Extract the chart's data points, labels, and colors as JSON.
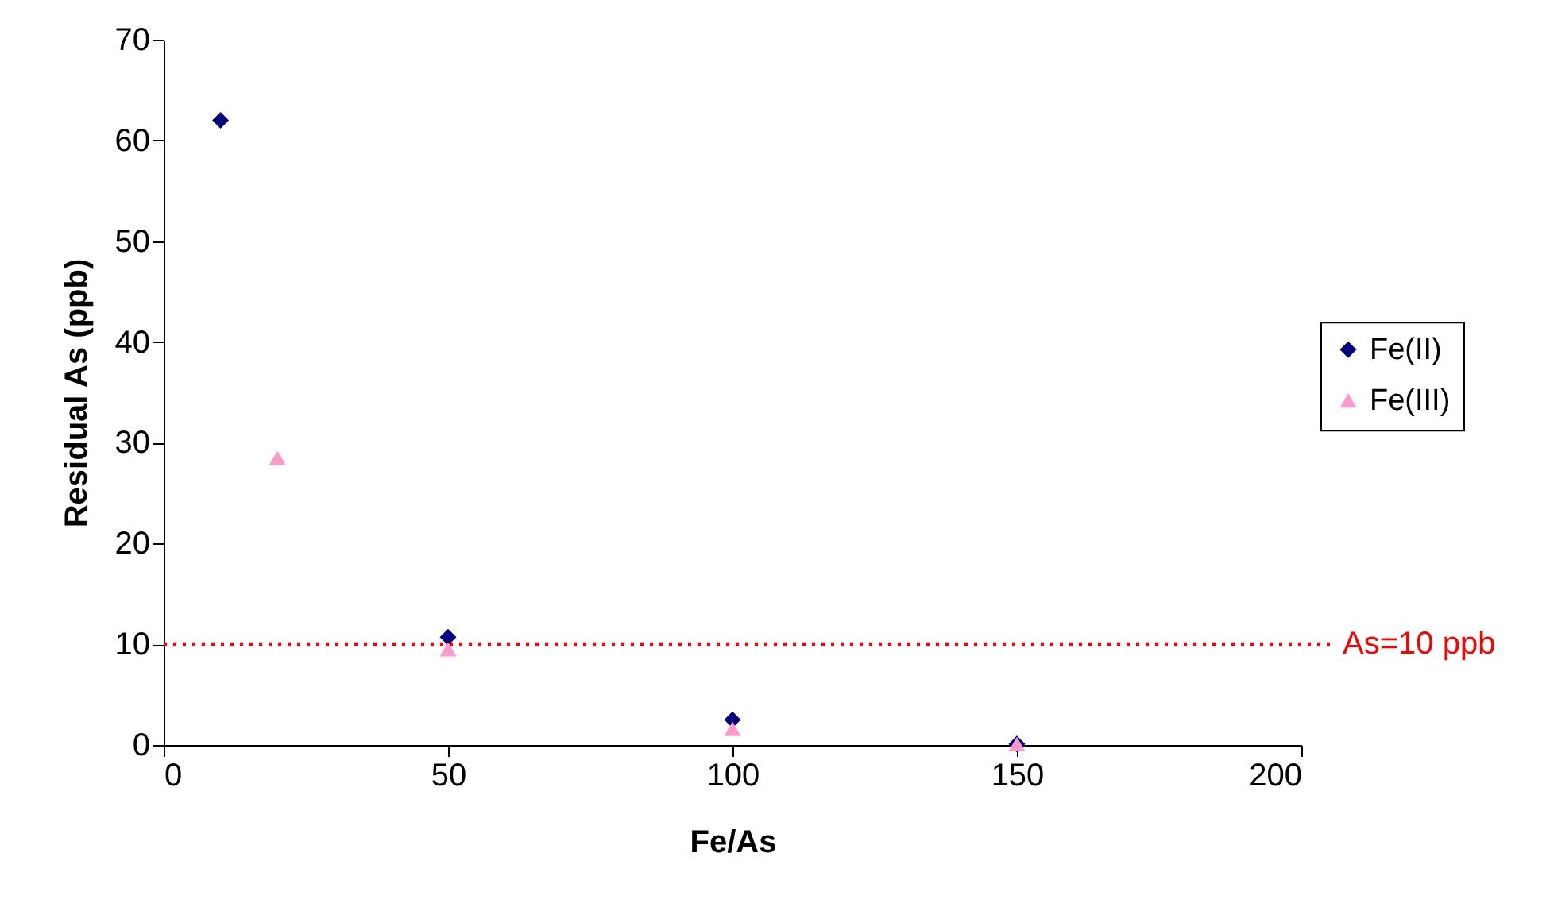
{
  "chart_data": {
    "type": "scatter",
    "xlabel": "Fe/As",
    "ylabel": "Residual As (ppb)",
    "xlim": [
      0,
      200
    ],
    "xticks": [
      0,
      50,
      100,
      150,
      200
    ],
    "ylim": [
      0,
      70
    ],
    "yticks": [
      0,
      10,
      20,
      30,
      40,
      50,
      60,
      70
    ],
    "grid": false,
    "legend": "right",
    "series": [
      {
        "name": "Fe(II)",
        "color": "#000080",
        "marker": "diamond",
        "x": [
          10,
          50,
          100,
          150
        ],
        "values": [
          62,
          10.7,
          2.5,
          0.1
        ]
      },
      {
        "name": "Fe(III)",
        "color": "#ff99cc",
        "marker": "triangle",
        "x": [
          20,
          50,
          100,
          150
        ],
        "values": [
          28.5,
          9.5,
          1.6,
          0.1
        ]
      }
    ],
    "ref_lines": [
      {
        "axis": "y",
        "value": 10,
        "label": "As=10 ppb",
        "color": "#ff0000",
        "line_style": "dotted"
      }
    ]
  }
}
